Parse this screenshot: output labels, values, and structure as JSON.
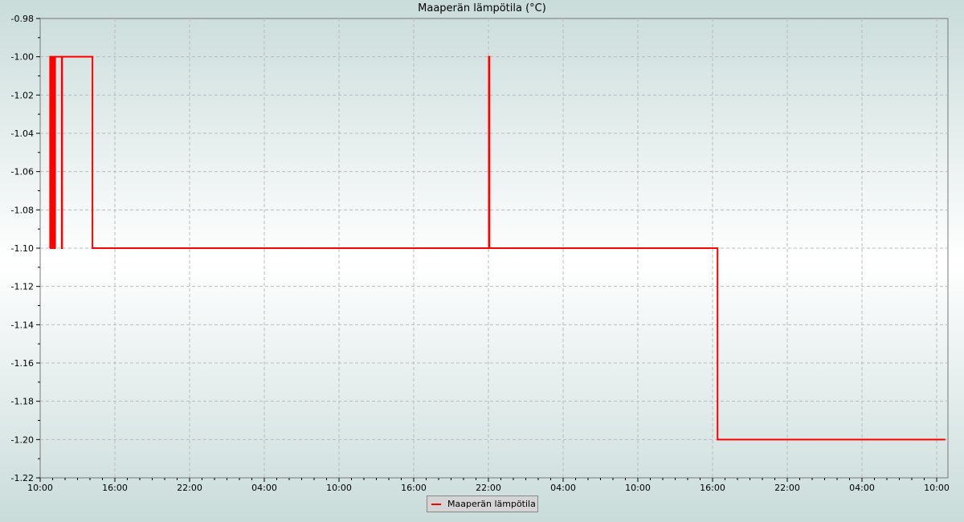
{
  "chart_data": {
    "type": "line",
    "title": "Maaperän lämpötila (°C)",
    "xlabel": "",
    "ylabel": "",
    "ylim": [
      -1.22,
      -0.98
    ],
    "yticks": [
      "-0.98",
      "-1.00",
      "-1.02",
      "-1.04",
      "-1.06",
      "-1.08",
      "-1.10",
      "-1.12",
      "-1.14",
      "-1.16",
      "-1.18",
      "-1.20",
      "-1.22"
    ],
    "xticks": [
      "10:00",
      "16:00",
      "22:00",
      "04:00",
      "10:00",
      "16:00",
      "22:00",
      "04:00",
      "10:00",
      "16:00",
      "22:00",
      "04:00",
      "10:00"
    ],
    "xlim": [
      "day1 10:00",
      "day4 10:55"
    ],
    "grid": true,
    "legend_position": "bottom",
    "step": true,
    "series": [
      {
        "name": "Maaperän lämpötila",
        "color": "#ff0000",
        "points": [
          [
            "day1 10:47",
            -1.1
          ],
          [
            "day1 10:48",
            -1.0
          ],
          [
            "day1 10:51",
            -1.1
          ],
          [
            "day1 10:52",
            -1.0
          ],
          [
            "day1 10:55",
            -1.1
          ],
          [
            "day1 10:57",
            -1.0
          ],
          [
            "day1 11:00",
            -1.1
          ],
          [
            "day1 11:02",
            -1.0
          ],
          [
            "day1 11:05",
            -1.1
          ],
          [
            "day1 11:07",
            -1.0
          ],
          [
            "day1 11:10",
            -1.1
          ],
          [
            "day1 11:12",
            -1.0
          ],
          [
            "day1 11:44",
            -1.1
          ],
          [
            "day1 11:46",
            -1.0
          ],
          [
            "day1 14:12",
            -1.1
          ],
          [
            "day2 22:02",
            -1.0
          ],
          [
            "day2 22:03",
            -1.1
          ],
          [
            "day2 22:04",
            -1.0
          ],
          [
            "day2 22:05",
            -1.1
          ],
          [
            "day3 16:24",
            -1.2
          ],
          [
            "day4 10:42",
            -1.2
          ]
        ]
      }
    ]
  }
}
